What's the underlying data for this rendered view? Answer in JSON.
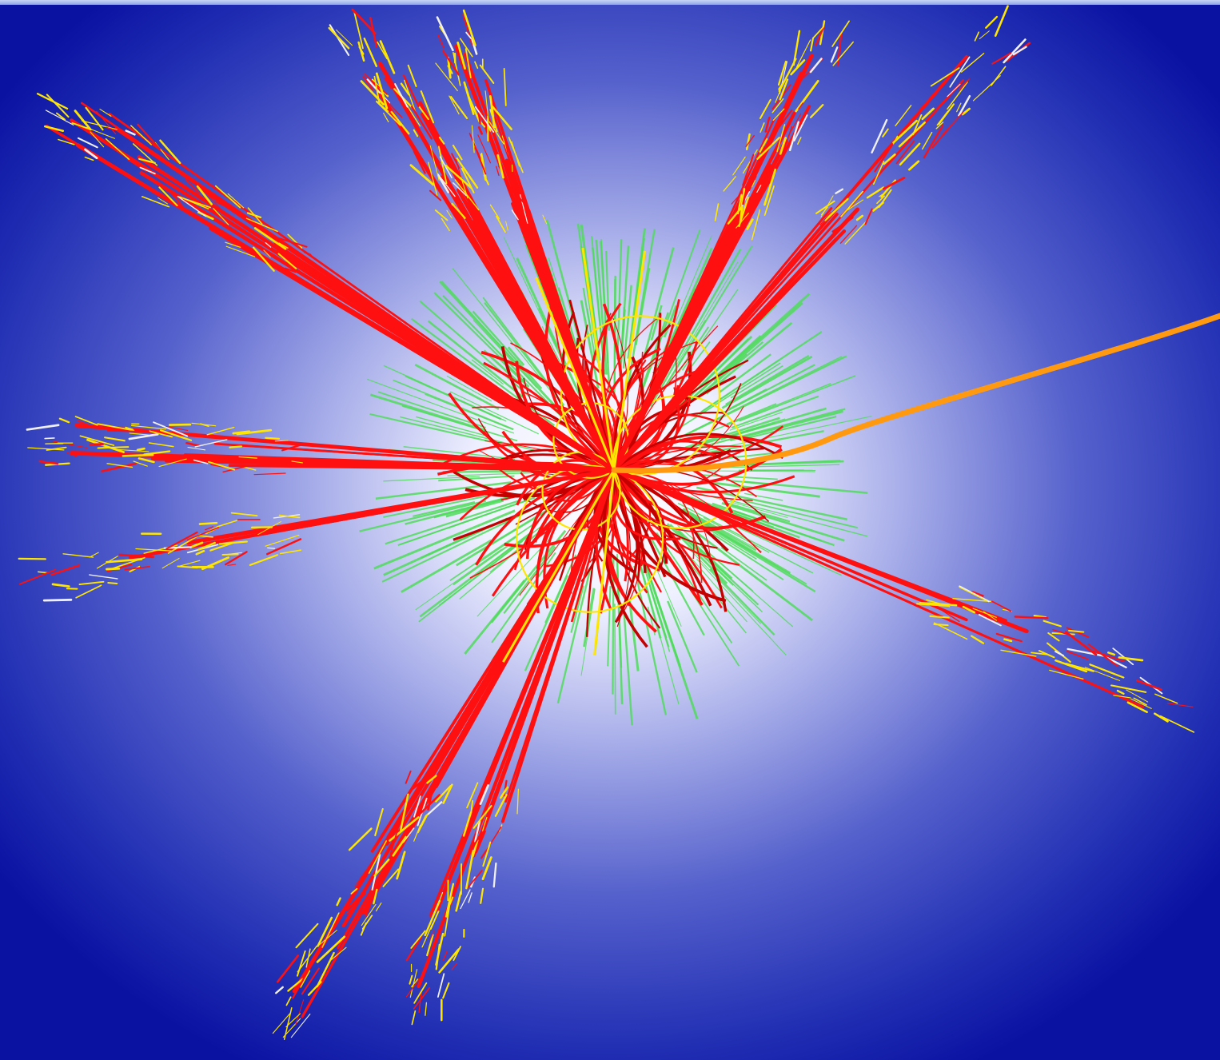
{
  "scene": {
    "subject": "particle-collision-event-display",
    "colors": {
      "background_edge": "#0a12a2",
      "background_mid": "#5b67cf",
      "background_glow": "#f4f5ff",
      "track_red": "#ff1010",
      "track_dark_red": "#c40000",
      "deposit_green": "#4fdc5a",
      "spray_yellow": "#ffe600",
      "spray_white": "#f0f0f0",
      "muon_orange": "#ff9a10"
    },
    "jets": [
      {
        "name": "jet-upper-left-far",
        "angle_deg": 213,
        "tracks": 14
      },
      {
        "name": "jet-top-left",
        "angle_deg": 240,
        "tracks": 10
      },
      {
        "name": "jet-top",
        "angle_deg": 250,
        "tracks": 9
      },
      {
        "name": "jet-top-right",
        "angle_deg": 296,
        "tracks": 11
      },
      {
        "name": "jet-upper-right",
        "angle_deg": 312,
        "tracks": 7
      },
      {
        "name": "jet-left",
        "angle_deg": 183,
        "tracks": 9
      },
      {
        "name": "jet-left-lower",
        "angle_deg": 169,
        "tracks": 3
      },
      {
        "name": "jet-right-lower",
        "angle_deg": 22,
        "tracks": 4
      },
      {
        "name": "jet-bottom-left",
        "angle_deg": 121,
        "tracks": 11
      },
      {
        "name": "jet-bottom",
        "angle_deg": 110,
        "tracks": 9
      }
    ],
    "muon": {
      "name": "muon-track",
      "exit_direction": "right"
    }
  }
}
